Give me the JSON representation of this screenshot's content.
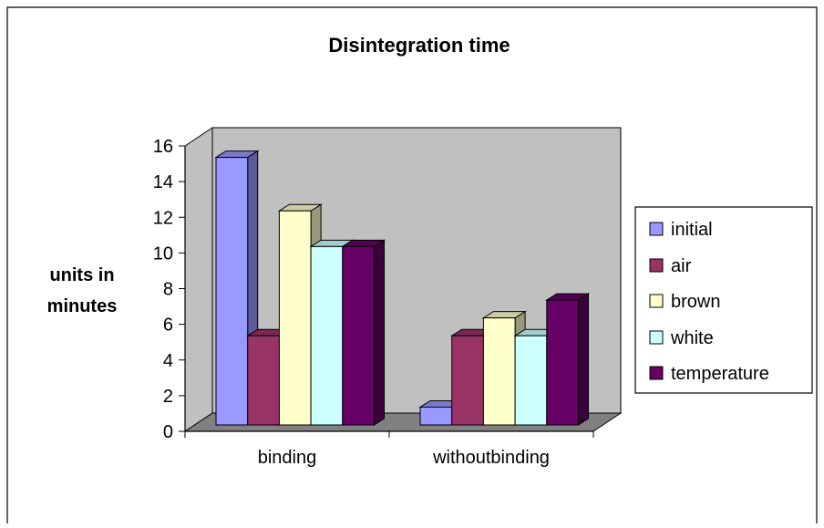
{
  "chart_data": {
    "type": "bar",
    "title": "Disintegration time",
    "ylabel_lines": [
      "units in",
      "minutes"
    ],
    "xlabel": "",
    "categories": [
      "binding",
      "withoutbinding"
    ],
    "yticks": [
      "0",
      "2",
      "4",
      "6",
      "8",
      "10",
      "12",
      "14",
      "16"
    ],
    "ylim": [
      0,
      16
    ],
    "grid": false,
    "legend_position": "right",
    "series": [
      {
        "name": "initial",
        "values": [
          15,
          1
        ],
        "color": "#9999ff"
      },
      {
        "name": "air",
        "values": [
          5,
          5
        ],
        "color": "#993366"
      },
      {
        "name": "brown",
        "values": [
          12,
          6
        ],
        "color": "#ffffcc"
      },
      {
        "name": "white",
        "values": [
          10,
          5
        ],
        "color": "#ccffff"
      },
      {
        "name": "temperature",
        "values": [
          10,
          7
        ],
        "color": "#660066"
      }
    ],
    "wall_color": "#c0c0c0",
    "floor_color": "#808080"
  }
}
